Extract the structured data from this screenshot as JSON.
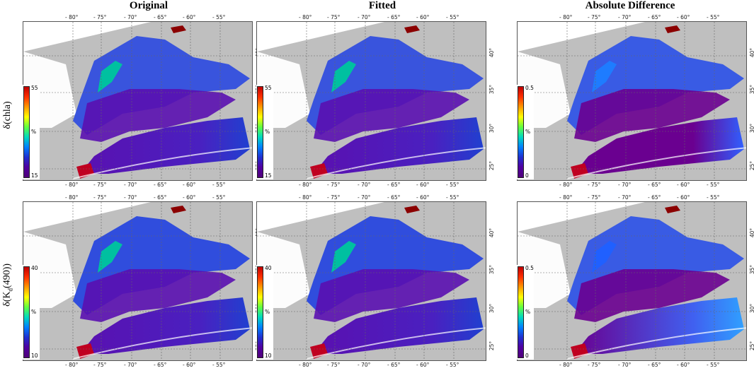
{
  "column_titles": [
    "Original",
    "Fitted",
    "Absolute Difference"
  ],
  "row_labels": [
    "δ(chla)",
    "δ(K_d(490))"
  ],
  "lon_ticks": [
    "- 80°",
    "- 75°",
    "- 70°",
    "- 65°",
    "- 60°",
    "- 55°"
  ],
  "lat_ticks": [
    "40°",
    "35°",
    "30°",
    "25°"
  ],
  "colorbars": {
    "chla_original": {
      "max": "55",
      "min": "15",
      "unit": "%"
    },
    "chla_fitted": {
      "max": "55",
      "min": "15",
      "unit": "%"
    },
    "chla_diff": {
      "max": "0.5",
      "min": "0",
      "unit": "%"
    },
    "kd_original": {
      "max": "40",
      "min": "10",
      "unit": "%"
    },
    "kd_fitted": {
      "max": "40",
      "min": "10",
      "unit": "%"
    },
    "kd_diff": {
      "max": "0.5",
      "min": "0",
      "unit": "%"
    }
  },
  "colors": {
    "land": "#bfbfbf",
    "no_data": "#ffffff",
    "ocean_low": "#50007a",
    "ocean_mid": "#2030d0",
    "ocean_high": "#c00000"
  }
}
